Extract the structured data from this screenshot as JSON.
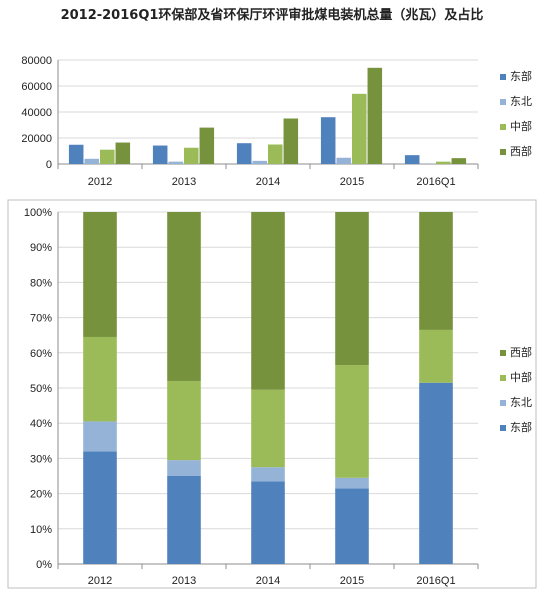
{
  "title": "2012-2016Q1环保部及省环保厅环评审批煤电装机总量（兆瓦）及占比",
  "colors": {
    "东部": "#4f81bd",
    "东北": "#95b3d7",
    "中部": "#9bbb59",
    "西部": "#76923c"
  },
  "chart_data": [
    {
      "type": "bar",
      "categories": [
        "2012",
        "2013",
        "2014",
        "2015",
        "2016Q1"
      ],
      "series": [
        {
          "name": "东部",
          "values": [
            14800,
            14200,
            16000,
            36000,
            6800
          ]
        },
        {
          "name": "东北",
          "values": [
            4000,
            1800,
            2400,
            4800,
            200
          ]
        },
        {
          "name": "中部",
          "values": [
            11000,
            12500,
            15000,
            54000,
            1800
          ]
        },
        {
          "name": "西部",
          "values": [
            16500,
            28000,
            35000,
            74000,
            4500
          ]
        }
      ],
      "ylim": [
        0,
        80000
      ],
      "yticks": [
        "0",
        "20000",
        "40000",
        "60000",
        "80000"
      ],
      "legend": "right",
      "legend_order": [
        "东部",
        "东北",
        "中部",
        "西部"
      ]
    },
    {
      "type": "bar",
      "stacked": true,
      "percent": true,
      "categories": [
        "2012",
        "2013",
        "2014",
        "2015",
        "2016Q1"
      ],
      "series": [
        {
          "name": "东部",
          "values": [
            32,
            25,
            23.5,
            21.5,
            51.5
          ]
        },
        {
          "name": "东北",
          "values": [
            8.5,
            4.5,
            4,
            3,
            0
          ]
        },
        {
          "name": "中部",
          "values": [
            24,
            22.5,
            22,
            32,
            15
          ]
        },
        {
          "name": "西部",
          "values": [
            35.5,
            48,
            50.5,
            43.5,
            33.5
          ]
        }
      ],
      "ylim": [
        0,
        100
      ],
      "yticks": [
        "0%",
        "10%",
        "20%",
        "30%",
        "40%",
        "50%",
        "60%",
        "70%",
        "80%",
        "90%",
        "100%"
      ],
      "legend": "right",
      "legend_order": [
        "西部",
        "中部",
        "东北",
        "东部"
      ]
    }
  ]
}
